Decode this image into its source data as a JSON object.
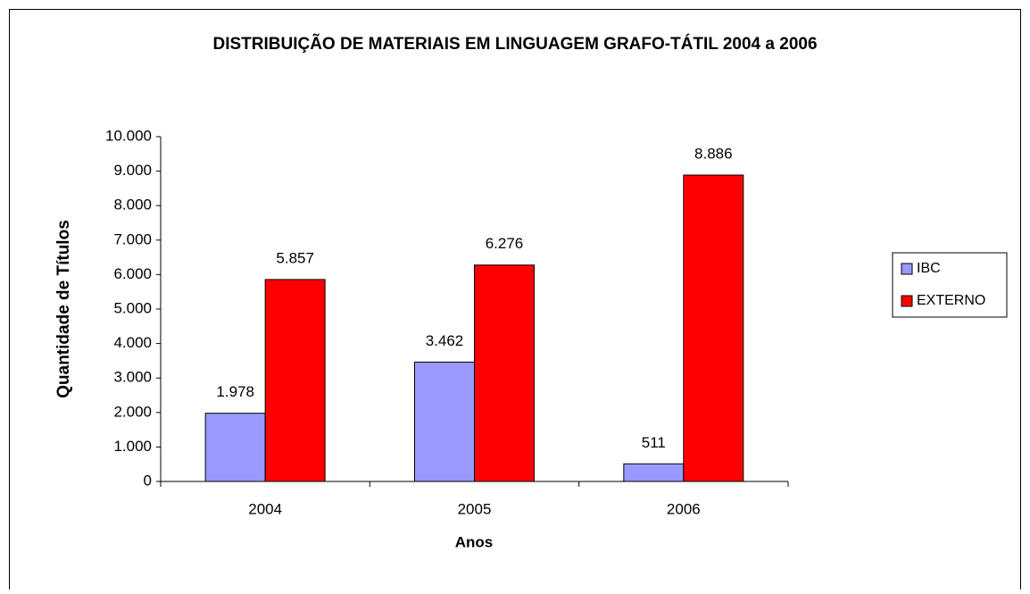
{
  "chart_data": {
    "type": "bar",
    "title": "DISTRIBUIÇÃO DE MATERIAIS EM LINGUAGEM GRAFO-TÁTIL 2004 a 2006",
    "x_label": "Anos",
    "y_label": "Quantidade de Títulos",
    "categories": [
      "2004",
      "2005",
      "2006"
    ],
    "series": [
      {
        "name": "IBC",
        "color": "#9999ff",
        "values": [
          1978,
          3462,
          511
        ],
        "value_labels": [
          "1.978",
          "3.462",
          "511"
        ]
      },
      {
        "name": "EXTERNO",
        "color": "#ff0000",
        "values": [
          5857,
          6276,
          8886
        ],
        "value_labels": [
          "5.857",
          "6.276",
          "8.886"
        ]
      }
    ],
    "ylim": [
      0,
      10000
    ],
    "yticks": [
      0,
      {
        "value": 1000,
        "label": "1.000"
      },
      {
        "value": 2000,
        "label": "2.000"
      },
      {
        "value": 3000,
        "label": "3.000"
      },
      {
        "value": 4000,
        "label": "4.000"
      },
      {
        "value": 5000,
        "label": "5.000"
      },
      {
        "value": 6000,
        "label": "6.000"
      },
      {
        "value": 7000,
        "label": "7.000"
      },
      {
        "value": 8000,
        "label": "8.000"
      },
      {
        "value": 9000,
        "label": "9.000"
      },
      {
        "value": 10000,
        "label": "10.000"
      }
    ],
    "grid": false,
    "legend": "right"
  }
}
